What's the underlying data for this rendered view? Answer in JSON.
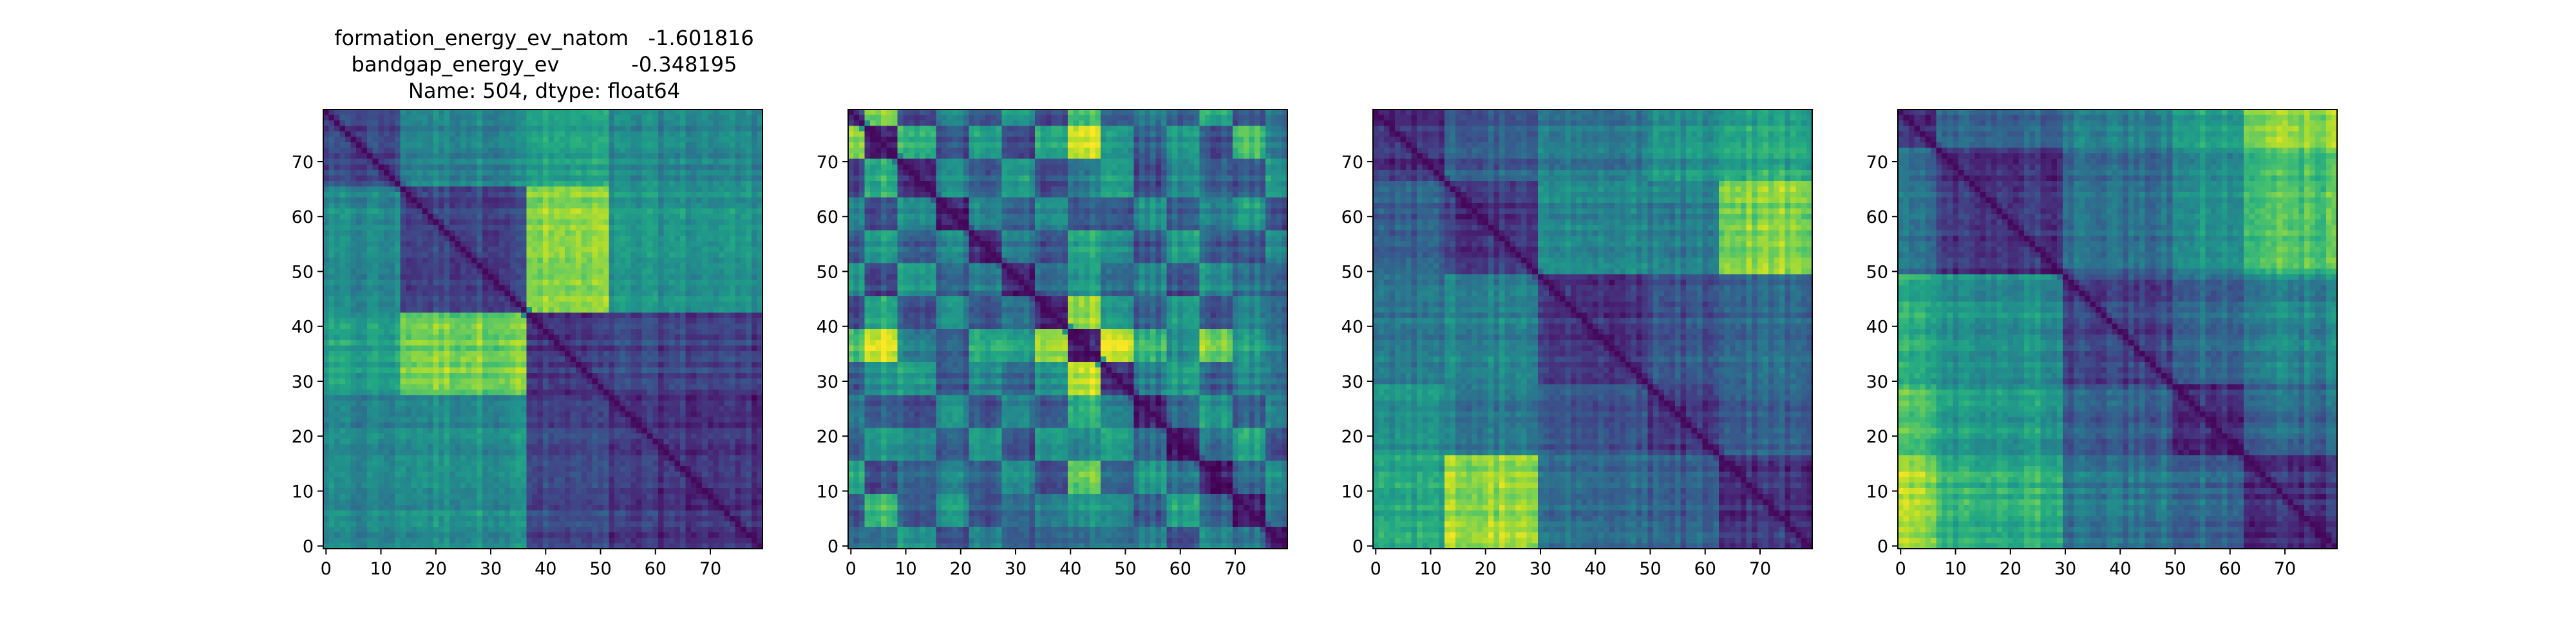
{
  "figure": {
    "title_lines": [
      "formation_energy_ev_natom   -1.601816",
      "bandgap_energy_ev           -0.348195",
      "Name: 504, dtype: float64"
    ]
  },
  "colormap": [
    "#440154",
    "#482475",
    "#414487",
    "#355f8d",
    "#2a788e",
    "#21918c",
    "#22a884",
    "#44bf70",
    "#7ad151",
    "#bddf26",
    "#fde725"
  ],
  "chart_data": [
    {
      "type": "heatmap",
      "size": 80,
      "xlim": [
        -0.5,
        79.5
      ],
      "ylim": [
        79.5,
        -0.5
      ],
      "xticks": [
        0,
        10,
        20,
        30,
        40,
        50,
        60,
        70
      ],
      "yticks": [
        0,
        10,
        20,
        30,
        40,
        50,
        60,
        70
      ],
      "value_range": [
        0,
        1
      ],
      "block_boundaries": [
        0,
        14,
        37,
        52,
        80
      ],
      "block_values": [
        [
          0.2,
          0.45,
          0.55,
          0.45
        ],
        [
          0.45,
          0.2,
          0.8,
          0.5
        ],
        [
          0.55,
          0.8,
          0.15,
          0.2
        ],
        [
          0.45,
          0.5,
          0.2,
          0.15
        ]
      ]
    },
    {
      "type": "heatmap",
      "size": 80,
      "xlim": [
        -0.5,
        79.5
      ],
      "ylim": [
        79.5,
        -0.5
      ],
      "xticks": [
        0,
        10,
        20,
        30,
        40,
        50,
        60,
        70
      ],
      "yticks": [
        0,
        10,
        20,
        30,
        40,
        50,
        60,
        70
      ],
      "value_range": [
        0,
        1
      ],
      "block_boundaries": [
        0,
        3,
        9,
        16,
        22,
        28,
        34,
        40,
        46,
        52,
        58,
        64,
        70,
        76,
        80
      ],
      "block_values": [
        [
          0.15,
          0.8,
          0.2,
          0.45,
          0.25,
          0.5,
          0.2,
          0.7,
          0.25,
          0.4,
          0.3,
          0.6,
          0.25,
          0.35
        ],
        [
          0.8,
          0.1,
          0.65,
          0.25,
          0.55,
          0.2,
          0.6,
          0.95,
          0.5,
          0.3,
          0.55,
          0.25,
          0.7,
          0.4
        ],
        [
          0.2,
          0.65,
          0.15,
          0.5,
          0.3,
          0.55,
          0.25,
          0.45,
          0.55,
          0.25,
          0.5,
          0.35,
          0.3,
          0.55
        ],
        [
          0.45,
          0.25,
          0.5,
          0.1,
          0.45,
          0.3,
          0.5,
          0.3,
          0.25,
          0.5,
          0.3,
          0.45,
          0.55,
          0.25
        ],
        [
          0.25,
          0.55,
          0.3,
          0.45,
          0.1,
          0.4,
          0.25,
          0.6,
          0.45,
          0.25,
          0.55,
          0.3,
          0.25,
          0.45
        ],
        [
          0.5,
          0.2,
          0.55,
          0.3,
          0.4,
          0.1,
          0.35,
          0.55,
          0.3,
          0.45,
          0.25,
          0.5,
          0.35,
          0.3
        ],
        [
          0.2,
          0.6,
          0.25,
          0.5,
          0.25,
          0.35,
          0.1,
          0.85,
          0.5,
          0.3,
          0.55,
          0.25,
          0.45,
          0.35
        ],
        [
          0.7,
          0.95,
          0.45,
          0.3,
          0.6,
          0.55,
          0.85,
          0.1,
          0.9,
          0.65,
          0.5,
          0.8,
          0.55,
          0.4
        ],
        [
          0.25,
          0.5,
          0.55,
          0.25,
          0.45,
          0.3,
          0.5,
          0.9,
          0.1,
          0.4,
          0.55,
          0.3,
          0.45,
          0.35
        ],
        [
          0.4,
          0.3,
          0.25,
          0.5,
          0.25,
          0.45,
          0.3,
          0.65,
          0.4,
          0.1,
          0.35,
          0.55,
          0.3,
          0.45
        ],
        [
          0.3,
          0.55,
          0.5,
          0.3,
          0.55,
          0.25,
          0.55,
          0.5,
          0.55,
          0.35,
          0.1,
          0.4,
          0.6,
          0.25
        ],
        [
          0.6,
          0.25,
          0.35,
          0.45,
          0.3,
          0.5,
          0.25,
          0.8,
          0.3,
          0.55,
          0.4,
          0.1,
          0.35,
          0.5
        ],
        [
          0.25,
          0.7,
          0.3,
          0.55,
          0.25,
          0.35,
          0.45,
          0.55,
          0.45,
          0.3,
          0.6,
          0.35,
          0.1,
          0.4
        ],
        [
          0.35,
          0.4,
          0.55,
          0.25,
          0.45,
          0.3,
          0.35,
          0.4,
          0.35,
          0.45,
          0.25,
          0.5,
          0.4,
          0.1
        ]
      ]
    },
    {
      "type": "heatmap",
      "size": 80,
      "xlim": [
        -0.5,
        79.5
      ],
      "ylim": [
        79.5,
        -0.5
      ],
      "xticks": [
        0,
        10,
        20,
        30,
        40,
        50,
        60,
        70
      ],
      "yticks": [
        0,
        10,
        20,
        30,
        40,
        50,
        60,
        70
      ],
      "value_range": [
        0,
        1
      ],
      "block_boundaries": [
        0,
        13,
        30,
        50,
        63,
        80
      ],
      "block_values": [
        [
          0.15,
          0.3,
          0.4,
          0.5,
          0.6
        ],
        [
          0.3,
          0.15,
          0.45,
          0.4,
          0.8
        ],
        [
          0.4,
          0.45,
          0.15,
          0.25,
          0.35
        ],
        [
          0.5,
          0.4,
          0.25,
          0.15,
          0.3
        ],
        [
          0.6,
          0.85,
          0.35,
          0.3,
          0.15
        ]
      ]
    },
    {
      "type": "heatmap",
      "size": 80,
      "xlim": [
        -0.5,
        79.5
      ],
      "ylim": [
        79.5,
        -0.5
      ],
      "xticks": [
        0,
        10,
        20,
        30,
        40,
        50,
        60,
        70
      ],
      "yticks": [
        0,
        10,
        20,
        30,
        40,
        50,
        60,
        70
      ],
      "value_range": [
        0,
        1
      ],
      "block_boundaries": [
        0,
        7,
        30,
        50,
        63,
        80
      ],
      "block_values": [
        [
          0.15,
          0.35,
          0.45,
          0.6,
          0.85
        ],
        [
          0.35,
          0.15,
          0.35,
          0.5,
          0.7
        ],
        [
          0.6,
          0.5,
          0.2,
          0.35,
          0.45
        ],
        [
          0.7,
          0.55,
          0.3,
          0.15,
          0.35
        ],
        [
          0.85,
          0.65,
          0.4,
          0.35,
          0.15
        ]
      ]
    }
  ]
}
